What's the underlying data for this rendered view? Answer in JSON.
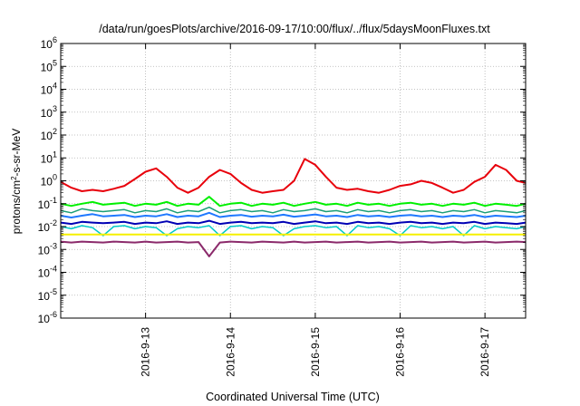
{
  "chart_data": {
    "type": "line",
    "title": "/data/run/goesPlots/archive/2016-09-17/10:00/flux/../flux/5daysMoonFluxes.txt",
    "xlabel": "Coordinated Universal Time (UTC)",
    "ylabel_parts": [
      "protons/cm",
      "2",
      "-s-sr-MeV"
    ],
    "ylabel": "protons/cm2-s-sr-MeV",
    "y_scale": "log",
    "ylim": [
      1e-06,
      1000000.0
    ],
    "y_ticks": [
      {
        "value": 1e-06,
        "base": "10",
        "exp": "-6"
      },
      {
        "value": 1e-05,
        "base": "10",
        "exp": "-5"
      },
      {
        "value": 0.0001,
        "base": "10",
        "exp": "-4"
      },
      {
        "value": 0.001,
        "base": "10",
        "exp": "-3"
      },
      {
        "value": 0.01,
        "base": "10",
        "exp": "-2"
      },
      {
        "value": 0.1,
        "base": "10",
        "exp": "-1"
      },
      {
        "value": 1,
        "base": "10",
        "exp": "0"
      },
      {
        "value": 10,
        "base": "10",
        "exp": "1"
      },
      {
        "value": 100,
        "base": "10",
        "exp": "2"
      },
      {
        "value": 1000,
        "base": "10",
        "exp": "3"
      },
      {
        "value": 10000,
        "base": "10",
        "exp": "4"
      },
      {
        "value": 100000,
        "base": "10",
        "exp": "5"
      },
      {
        "value": 1000000,
        "base": "10",
        "exp": "6"
      }
    ],
    "xlim": [
      "2016-09-12 00:00",
      "2016-09-17 11:30"
    ],
    "x_ticks": [
      {
        "value": "2016-09-13 00:00",
        "label": "2016-9-13"
      },
      {
        "value": "2016-09-14 00:00",
        "label": "2016-9-14"
      },
      {
        "value": "2016-09-15 00:00",
        "label": "2016-9-15"
      },
      {
        "value": "2016-09-16 00:00",
        "label": "2016-9-16"
      },
      {
        "value": "2016-09-17 00:00",
        "label": "2016-9-17"
      }
    ],
    "grid": true,
    "x": [
      "2016-09-12 00:00",
      "2016-09-12 03:00",
      "2016-09-12 06:00",
      "2016-09-12 09:00",
      "2016-09-12 12:00",
      "2016-09-12 15:00",
      "2016-09-12 18:00",
      "2016-09-12 21:00",
      "2016-09-13 00:00",
      "2016-09-13 03:00",
      "2016-09-13 06:00",
      "2016-09-13 09:00",
      "2016-09-13 12:00",
      "2016-09-13 15:00",
      "2016-09-13 18:00",
      "2016-09-13 21:00",
      "2016-09-14 00:00",
      "2016-09-14 03:00",
      "2016-09-14 06:00",
      "2016-09-14 09:00",
      "2016-09-14 12:00",
      "2016-09-14 15:00",
      "2016-09-14 18:00",
      "2016-09-14 21:00",
      "2016-09-15 00:00",
      "2016-09-15 03:00",
      "2016-09-15 06:00",
      "2016-09-15 09:00",
      "2016-09-15 12:00",
      "2016-09-15 15:00",
      "2016-09-15 18:00",
      "2016-09-15 21:00",
      "2016-09-16 00:00",
      "2016-09-16 03:00",
      "2016-09-16 06:00",
      "2016-09-16 09:00",
      "2016-09-16 12:00",
      "2016-09-16 15:00",
      "2016-09-16 18:00",
      "2016-09-16 21:00",
      "2016-09-17 00:00",
      "2016-09-17 03:00",
      "2016-09-17 06:00",
      "2016-09-17 09:00",
      "2016-09-17 11:30"
    ],
    "series": [
      {
        "color": "#e8000b",
        "width": 2,
        "values": [
          0.9,
          0.5,
          0.35,
          0.4,
          0.35,
          0.45,
          0.6,
          1.2,
          2.5,
          3.5,
          1.5,
          0.5,
          0.3,
          0.5,
          1.5,
          3.0,
          2.0,
          0.8,
          0.4,
          0.3,
          0.35,
          0.4,
          1.0,
          9.0,
          5.0,
          1.5,
          0.5,
          0.4,
          0.45,
          0.35,
          0.3,
          0.4,
          0.6,
          0.7,
          1.0,
          0.8,
          0.5,
          0.3,
          0.4,
          0.9,
          1.5,
          5.0,
          3.0,
          1.0,
          0.8
        ]
      },
      {
        "color": "#00f000",
        "width": 2,
        "values": [
          0.1,
          0.08,
          0.1,
          0.12,
          0.09,
          0.1,
          0.11,
          0.08,
          0.1,
          0.09,
          0.12,
          0.08,
          0.1,
          0.09,
          0.2,
          0.08,
          0.1,
          0.11,
          0.08,
          0.1,
          0.09,
          0.11,
          0.08,
          0.1,
          0.12,
          0.09,
          0.1,
          0.08,
          0.11,
          0.09,
          0.1,
          0.08,
          0.1,
          0.11,
          0.09,
          0.1,
          0.08,
          0.1,
          0.09,
          0.11,
          0.08,
          0.1,
          0.09,
          0.08,
          0.1
        ]
      },
      {
        "color": "#1b9e77",
        "width": 1.5,
        "values": [
          0.05,
          0.04,
          0.06,
          0.05,
          0.045,
          0.05,
          0.055,
          0.04,
          0.05,
          0.045,
          0.06,
          0.04,
          0.05,
          0.045,
          0.07,
          0.04,
          0.05,
          0.055,
          0.045,
          0.05,
          0.04,
          0.055,
          0.045,
          0.05,
          0.06,
          0.045,
          0.05,
          0.04,
          0.055,
          0.045,
          0.05,
          0.04,
          0.05,
          0.055,
          0.045,
          0.05,
          0.04,
          0.05,
          0.045,
          0.055,
          0.04,
          0.05,
          0.045,
          0.04,
          0.05
        ]
      },
      {
        "color": "#1e78ff",
        "width": 2,
        "values": [
          0.03,
          0.025,
          0.03,
          0.035,
          0.028,
          0.03,
          0.032,
          0.026,
          0.03,
          0.028,
          0.035,
          0.026,
          0.03,
          0.028,
          0.04,
          0.026,
          0.03,
          0.032,
          0.027,
          0.03,
          0.028,
          0.033,
          0.027,
          0.03,
          0.034,
          0.028,
          0.03,
          0.026,
          0.032,
          0.028,
          0.03,
          0.026,
          0.03,
          0.032,
          0.028,
          0.03,
          0.026,
          0.03,
          0.028,
          0.032,
          0.026,
          0.03,
          0.028,
          0.026,
          0.03
        ]
      },
      {
        "color": "#0000b4",
        "width": 2,
        "values": [
          0.015,
          0.013,
          0.016,
          0.015,
          0.014,
          0.015,
          0.016,
          0.013,
          0.015,
          0.014,
          0.017,
          0.013,
          0.015,
          0.014,
          0.018,
          0.013,
          0.015,
          0.016,
          0.014,
          0.015,
          0.014,
          0.016,
          0.013,
          0.015,
          0.017,
          0.014,
          0.015,
          0.013,
          0.016,
          0.014,
          0.015,
          0.013,
          0.015,
          0.016,
          0.014,
          0.015,
          0.013,
          0.015,
          0.014,
          0.016,
          0.013,
          0.015,
          0.014,
          0.013,
          0.015
        ]
      },
      {
        "color": "#00c8c8",
        "width": 1.5,
        "values": [
          0.01,
          0.008,
          0.011,
          0.009,
          0.004,
          0.01,
          0.011,
          0.008,
          0.01,
          0.009,
          0.004,
          0.008,
          0.01,
          0.009,
          0.011,
          0.004,
          0.01,
          0.011,
          0.008,
          0.01,
          0.009,
          0.004,
          0.008,
          0.01,
          0.011,
          0.009,
          0.01,
          0.004,
          0.011,
          0.009,
          0.01,
          0.008,
          0.004,
          0.011,
          0.009,
          0.01,
          0.008,
          0.01,
          0.004,
          0.011,
          0.008,
          0.01,
          0.009,
          0.008,
          0.01
        ]
      },
      {
        "color": "#f5f000",
        "width": 2,
        "values": [
          0.0045,
          0.0045,
          0.0045,
          0.0045,
          0.0045,
          0.0045,
          0.0045,
          0.0045,
          0.0045,
          0.0045,
          0.0045,
          0.0045,
          0.0045,
          0.0045,
          0.0045,
          0.0045,
          0.0045,
          0.0045,
          0.0045,
          0.0045,
          0.0045,
          0.0045,
          0.0045,
          0.0045,
          0.0045,
          0.0045,
          0.0045,
          0.0045,
          0.0045,
          0.0045,
          0.0045,
          0.0045,
          0.0045,
          0.0045,
          0.0045,
          0.0045,
          0.0045,
          0.0045,
          0.0045,
          0.0045,
          0.0045,
          0.0045,
          0.0045,
          0.0045,
          0.0045
        ]
      },
      {
        "color": "#8b2a6b",
        "width": 2,
        "values": [
          0.0022,
          0.002,
          0.0022,
          0.0021,
          0.002,
          0.0022,
          0.0021,
          0.002,
          0.0022,
          0.002,
          0.0021,
          0.0022,
          0.002,
          0.0021,
          0.0005,
          0.002,
          0.0022,
          0.0021,
          0.002,
          0.0022,
          0.0021,
          0.002,
          0.0022,
          0.002,
          0.0021,
          0.0022,
          0.002,
          0.0021,
          0.0022,
          0.002,
          0.0021,
          0.0022,
          0.002,
          0.0021,
          0.0022,
          0.002,
          0.0021,
          0.0022,
          0.002,
          0.0021,
          0.0022,
          0.002,
          0.0021,
          0.0022,
          0.0021
        ]
      }
    ]
  }
}
